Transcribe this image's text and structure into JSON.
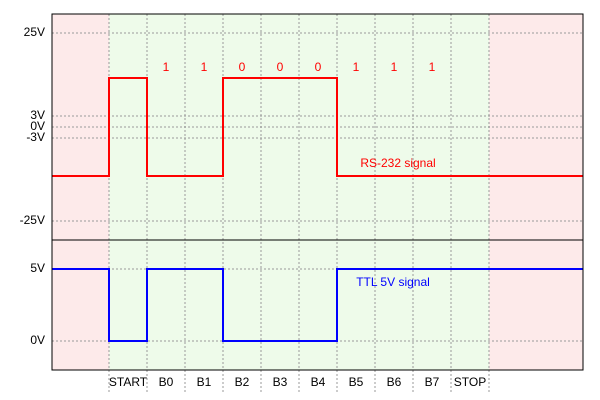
{
  "upper_axis": {
    "labels": [
      "25V",
      "3V",
      "0V",
      "-3V",
      "-25V"
    ]
  },
  "lower_axis": {
    "labels": [
      "5V",
      "0V"
    ]
  },
  "bits": [
    "1",
    "1",
    "0",
    "0",
    "0",
    "1",
    "1",
    "1"
  ],
  "columns": [
    "START",
    "B0",
    "B1",
    "B2",
    "B3",
    "B4",
    "B5",
    "B6",
    "B7",
    "STOP"
  ],
  "rs232": {
    "label": "RS-232 signal",
    "color": "#ff0000"
  },
  "ttl": {
    "label": "TTL 5V signal",
    "color": "#0000ff"
  }
}
